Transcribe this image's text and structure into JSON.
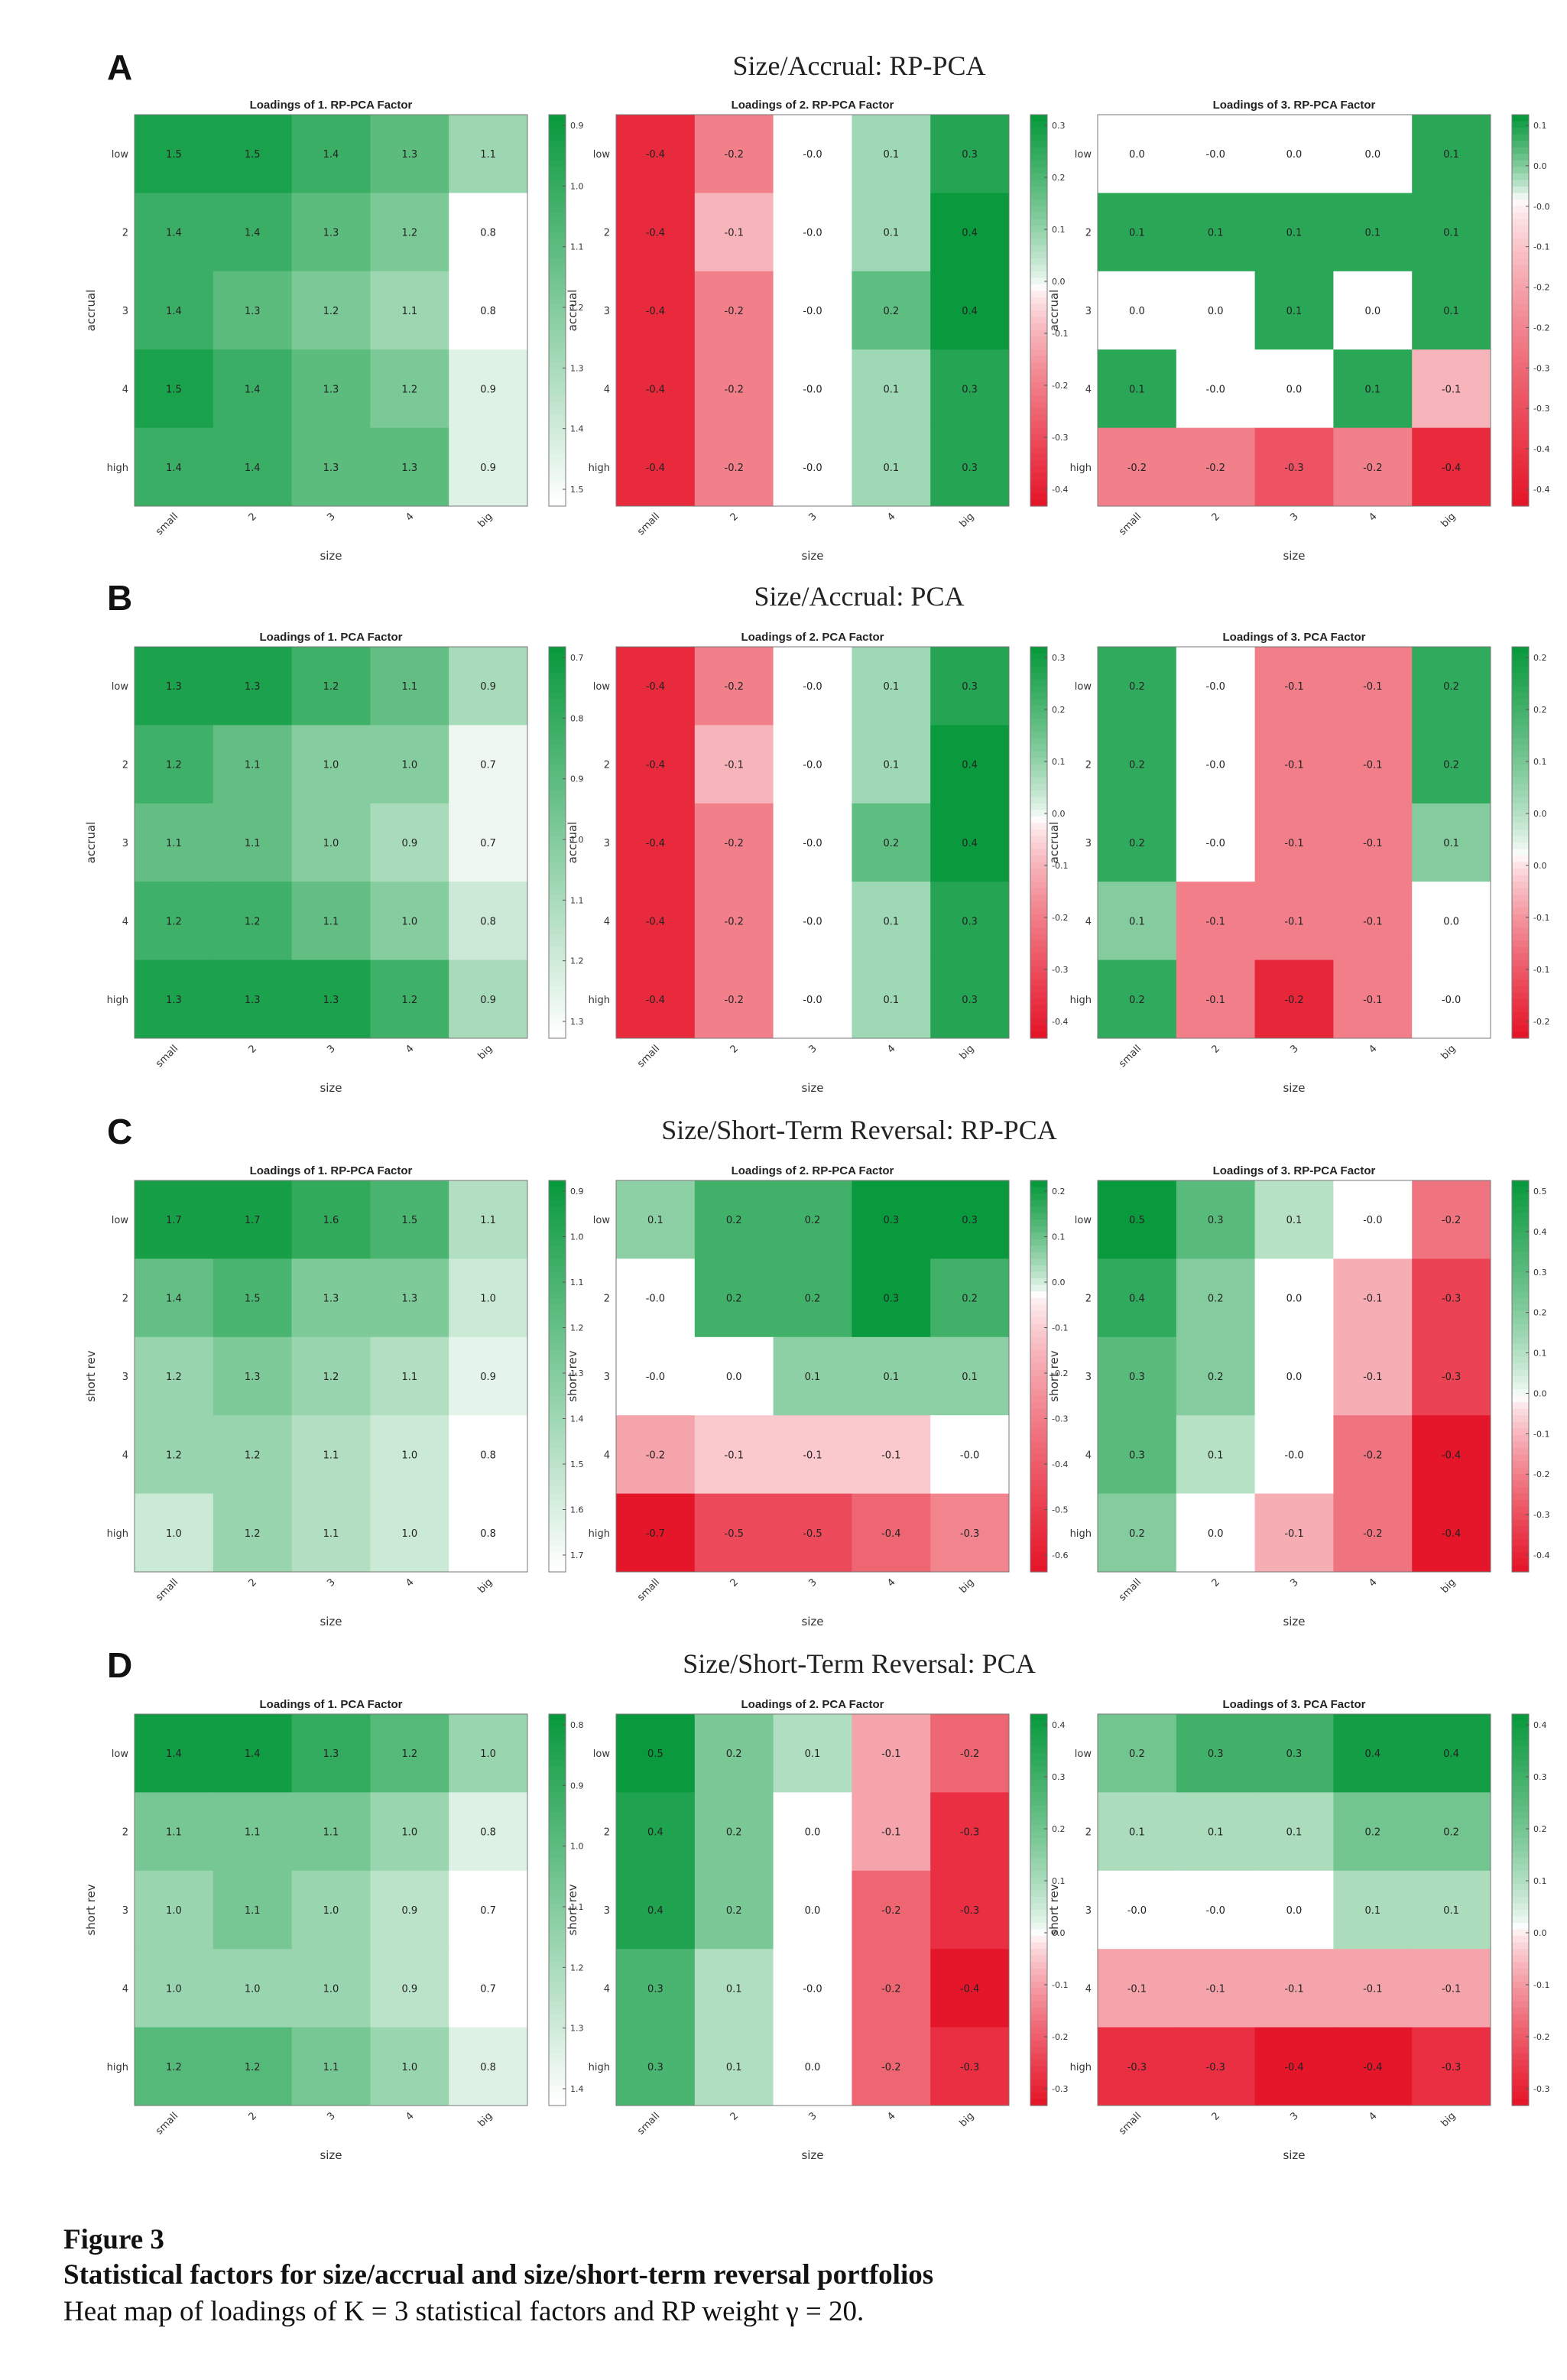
{
  "panels": [
    {
      "letter": "A",
      "title": "Size/Accrual: RP-PCA"
    },
    {
      "letter": "B",
      "title": "Size/Accrual: PCA"
    },
    {
      "letter": "C",
      "title": "Size/Short-Term Reversal: RP-PCA"
    },
    {
      "letter": "D",
      "title": "Size/Short-Term Reversal: PCA"
    }
  ],
  "caption": {
    "label": "Figure 3",
    "title": "Statistical factors for size/accrual and size/short-term reversal portfolios",
    "text": "Heat map of loadings of K = 3 statistical factors and RP weight γ = 20."
  },
  "colors": {
    "positive": "#0a9a3e",
    "negative": "#e6162a",
    "neutral": "#ffffff"
  },
  "chart_data": [
    {
      "type": "heatmap",
      "panel": "A",
      "title": "Loadings of 1. RP-PCA Factor",
      "xlabel": "size",
      "ylabel": "accrual",
      "x": [
        "small",
        "2",
        "3",
        "4",
        "big"
      ],
      "y": [
        "low",
        "2",
        "3",
        "4",
        "high"
      ],
      "values": [
        [
          1.5,
          1.5,
          1.4,
          1.3,
          1.1
        ],
        [
          1.4,
          1.4,
          1.3,
          1.2,
          0.8
        ],
        [
          1.4,
          1.3,
          1.2,
          1.1,
          0.8
        ],
        [
          1.5,
          1.4,
          1.3,
          1.2,
          0.9
        ],
        [
          1.4,
          1.4,
          1.3,
          1.3,
          0.9
        ]
      ],
      "colorbar": [
        "0.9",
        "1.0",
        "1.1",
        "1.2",
        "1.3",
        "1.4",
        "1.5"
      ],
      "clim": [
        0.8,
        1.55
      ],
      "diverging": false
    },
    {
      "type": "heatmap",
      "panel": "A",
      "title": "Loadings of 2. RP-PCA Factor",
      "xlabel": "size",
      "ylabel": "accrual",
      "x": [
        "small",
        "2",
        "3",
        "4",
        "big"
      ],
      "y": [
        "low",
        "2",
        "3",
        "4",
        "high"
      ],
      "values": [
        [
          -0.4,
          -0.2,
          -0.0,
          0.1,
          0.3
        ],
        [
          -0.4,
          -0.1,
          -0.0,
          0.1,
          0.4
        ],
        [
          -0.4,
          -0.2,
          -0.0,
          0.2,
          0.4
        ],
        [
          -0.4,
          -0.2,
          -0.0,
          0.1,
          0.3
        ],
        [
          -0.4,
          -0.2,
          -0.0,
          0.1,
          0.3
        ]
      ],
      "colorbar": [
        "0.3",
        "0.2",
        "0.1",
        "0.0",
        "-0.1",
        "-0.2",
        "-0.3",
        "-0.4"
      ],
      "clim": [
        -0.45,
        0.35
      ],
      "diverging": true
    },
    {
      "type": "heatmap",
      "panel": "A",
      "title": "Loadings of 3. RP-PCA Factor",
      "xlabel": "size",
      "ylabel": "accrual",
      "x": [
        "small",
        "2",
        "3",
        "4",
        "big"
      ],
      "y": [
        "low",
        "2",
        "3",
        "4",
        "high"
      ],
      "values": [
        [
          0.0,
          -0.0,
          0.0,
          0.0,
          0.1
        ],
        [
          0.1,
          0.1,
          0.1,
          0.1,
          0.1
        ],
        [
          0.0,
          0.0,
          0.1,
          0.0,
          0.1
        ],
        [
          0.1,
          -0.0,
          0.0,
          0.1,
          -0.1
        ],
        [
          -0.2,
          -0.2,
          -0.3,
          -0.2,
          -0.4
        ]
      ],
      "colorbar": [
        "0.1",
        "0.0",
        "-0.0",
        "-0.1",
        "-0.2",
        "-0.2",
        "-0.3",
        "-0.3",
        "-0.4",
        "-0.4"
      ],
      "clim": [
        -0.45,
        0.12
      ],
      "diverging": true
    },
    {
      "type": "heatmap",
      "panel": "B",
      "title": "Loadings of 1. PCA Factor",
      "xlabel": "size",
      "ylabel": "accrual",
      "x": [
        "small",
        "2",
        "3",
        "4",
        "big"
      ],
      "y": [
        "low",
        "2",
        "3",
        "4",
        "high"
      ],
      "values": [
        [
          1.3,
          1.3,
          1.2,
          1.1,
          0.9
        ],
        [
          1.2,
          1.1,
          1.0,
          1.0,
          0.7
        ],
        [
          1.1,
          1.1,
          1.0,
          0.9,
          0.7
        ],
        [
          1.2,
          1.2,
          1.1,
          1.0,
          0.8
        ],
        [
          1.3,
          1.3,
          1.3,
          1.2,
          0.9
        ]
      ],
      "colorbar": [
        "0.7",
        "0.8",
        "0.9",
        "1.0",
        "1.1",
        "1.2",
        "1.3"
      ],
      "clim": [
        0.65,
        1.35
      ],
      "diverging": false
    },
    {
      "type": "heatmap",
      "panel": "B",
      "title": "Loadings of 2. PCA Factor",
      "xlabel": "size",
      "ylabel": "accrual",
      "x": [
        "small",
        "2",
        "3",
        "4",
        "big"
      ],
      "y": [
        "low",
        "2",
        "3",
        "4",
        "high"
      ],
      "values": [
        [
          -0.4,
          -0.2,
          -0.0,
          0.1,
          0.3
        ],
        [
          -0.4,
          -0.1,
          -0.0,
          0.1,
          0.4
        ],
        [
          -0.4,
          -0.2,
          -0.0,
          0.2,
          0.4
        ],
        [
          -0.4,
          -0.2,
          -0.0,
          0.1,
          0.3
        ],
        [
          -0.4,
          -0.2,
          -0.0,
          0.1,
          0.3
        ]
      ],
      "colorbar": [
        "0.3",
        "0.2",
        "0.1",
        "0.0",
        "-0.1",
        "-0.2",
        "-0.3",
        "-0.4"
      ],
      "clim": [
        -0.45,
        0.35
      ],
      "diverging": true
    },
    {
      "type": "heatmap",
      "panel": "B",
      "title": "Loadings of 3. PCA Factor",
      "xlabel": "size",
      "ylabel": "accrual",
      "x": [
        "small",
        "2",
        "3",
        "4",
        "big"
      ],
      "y": [
        "low",
        "2",
        "3",
        "4",
        "high"
      ],
      "values": [
        [
          0.2,
          -0.0,
          -0.1,
          -0.1,
          0.2
        ],
        [
          0.2,
          -0.0,
          -0.1,
          -0.1,
          0.2
        ],
        [
          0.2,
          -0.0,
          -0.1,
          -0.1,
          0.1
        ],
        [
          0.1,
          -0.1,
          -0.1,
          -0.1,
          0.0
        ],
        [
          0.2,
          -0.1,
          -0.2,
          -0.1,
          -0.0
        ]
      ],
      "colorbar": [
        "0.2",
        "0.2",
        "0.1",
        "0.0",
        "0.0",
        "-0.1",
        "-0.1",
        "-0.2"
      ],
      "clim": [
        -0.22,
        0.25
      ],
      "diverging": true
    },
    {
      "type": "heatmap",
      "panel": "C",
      "title": "Loadings of 1. RP-PCA Factor",
      "xlabel": "size",
      "ylabel": "short rev",
      "x": [
        "small",
        "2",
        "3",
        "4",
        "big"
      ],
      "y": [
        "low",
        "2",
        "3",
        "4",
        "high"
      ],
      "values": [
        [
          1.7,
          1.7,
          1.6,
          1.5,
          1.1
        ],
        [
          1.4,
          1.5,
          1.3,
          1.3,
          1.0
        ],
        [
          1.2,
          1.3,
          1.2,
          1.1,
          0.9
        ],
        [
          1.2,
          1.2,
          1.1,
          1.0,
          0.8
        ],
        [
          1.0,
          1.2,
          1.1,
          1.0,
          0.8
        ]
      ],
      "colorbar": [
        "0.9",
        "1.0",
        "1.1",
        "1.2",
        "1.3",
        "1.4",
        "1.5",
        "1.6",
        "1.7"
      ],
      "clim": [
        0.8,
        1.75
      ],
      "diverging": false
    },
    {
      "type": "heatmap",
      "panel": "C",
      "title": "Loadings of 2. RP-PCA Factor",
      "xlabel": "size",
      "ylabel": "short rev",
      "x": [
        "small",
        "2",
        "3",
        "4",
        "big"
      ],
      "y": [
        "low",
        "2",
        "3",
        "4",
        "high"
      ],
      "values": [
        [
          0.1,
          0.2,
          0.2,
          0.3,
          0.3
        ],
        [
          -0.0,
          0.2,
          0.2,
          0.3,
          0.2
        ],
        [
          -0.0,
          0.0,
          0.1,
          0.1,
          0.1
        ],
        [
          -0.2,
          -0.1,
          -0.1,
          -0.1,
          -0.0
        ],
        [
          -0.7,
          -0.5,
          -0.5,
          -0.4,
          -0.3
        ]
      ],
      "colorbar": [
        "0.2",
        "0.1",
        "0.0",
        "-0.1",
        "-0.2",
        "-0.3",
        "-0.4",
        "-0.5",
        "-0.6"
      ],
      "clim": [
        -0.7,
        0.28
      ],
      "diverging": true
    },
    {
      "type": "heatmap",
      "panel": "C",
      "title": "Loadings of 3. RP-PCA Factor",
      "xlabel": "size",
      "ylabel": "short rev",
      "x": [
        "small",
        "2",
        "3",
        "4",
        "big"
      ],
      "y": [
        "low",
        "2",
        "3",
        "4",
        "high"
      ],
      "values": [
        [
          0.5,
          0.3,
          0.1,
          -0.0,
          -0.2
        ],
        [
          0.4,
          0.2,
          0.0,
          -0.1,
          -0.3
        ],
        [
          0.3,
          0.2,
          0.0,
          -0.1,
          -0.3
        ],
        [
          0.3,
          0.1,
          -0.0,
          -0.2,
          -0.4
        ],
        [
          0.2,
          0.0,
          -0.1,
          -0.2,
          -0.4
        ]
      ],
      "colorbar": [
        "0.5",
        "0.4",
        "0.3",
        "0.2",
        "0.1",
        "0.0",
        "-0.1",
        "-0.2",
        "-0.3",
        "-0.4"
      ],
      "clim": [
        -0.4,
        0.5
      ],
      "diverging": true
    },
    {
      "type": "heatmap",
      "panel": "D",
      "title": "Loadings of 1. PCA Factor",
      "xlabel": "size",
      "ylabel": "short rev",
      "x": [
        "small",
        "2",
        "3",
        "4",
        "big"
      ],
      "y": [
        "low",
        "2",
        "3",
        "4",
        "high"
      ],
      "values": [
        [
          1.4,
          1.4,
          1.3,
          1.2,
          1.0
        ],
        [
          1.1,
          1.1,
          1.1,
          1.0,
          0.8
        ],
        [
          1.0,
          1.1,
          1.0,
          0.9,
          0.7
        ],
        [
          1.0,
          1.0,
          1.0,
          0.9,
          0.7
        ],
        [
          1.2,
          1.2,
          1.1,
          1.0,
          0.8
        ]
      ],
      "colorbar": [
        "0.8",
        "0.9",
        "1.0",
        "1.1",
        "1.2",
        "1.3",
        "1.4"
      ],
      "clim": [
        0.7,
        1.42
      ],
      "diverging": false
    },
    {
      "type": "heatmap",
      "panel": "D",
      "title": "Loadings of 2. PCA Factor",
      "xlabel": "size",
      "ylabel": "short rev",
      "x": [
        "small",
        "2",
        "3",
        "4",
        "big"
      ],
      "y": [
        "low",
        "2",
        "3",
        "4",
        "high"
      ],
      "values": [
        [
          0.5,
          0.2,
          0.1,
          -0.1,
          -0.2
        ],
        [
          0.4,
          0.2,
          0.0,
          -0.1,
          -0.3
        ],
        [
          0.4,
          0.2,
          0.0,
          -0.2,
          -0.3
        ],
        [
          0.3,
          0.1,
          -0.0,
          -0.2,
          -0.4
        ],
        [
          0.3,
          0.1,
          0.0,
          -0.2,
          -0.3
        ]
      ],
      "colorbar": [
        "0.4",
        "0.3",
        "0.2",
        "0.1",
        "0.0",
        "-0.1",
        "-0.2",
        "-0.3"
      ],
      "clim": [
        -0.35,
        0.45
      ],
      "diverging": true
    },
    {
      "type": "heatmap",
      "panel": "D",
      "title": "Loadings of 3. PCA Factor",
      "xlabel": "size",
      "ylabel": "short rev",
      "x": [
        "small",
        "2",
        "3",
        "4",
        "big"
      ],
      "y": [
        "low",
        "2",
        "3",
        "4",
        "high"
      ],
      "values": [
        [
          0.2,
          0.3,
          0.3,
          0.4,
          0.4
        ],
        [
          0.1,
          0.1,
          0.1,
          0.2,
          0.2
        ],
        [
          -0.0,
          -0.0,
          0.0,
          0.1,
          0.1
        ],
        [
          -0.1,
          -0.1,
          -0.1,
          -0.1,
          -0.1
        ],
        [
          -0.3,
          -0.3,
          -0.4,
          -0.4,
          -0.3
        ]
      ],
      "colorbar": [
        "0.4",
        "0.3",
        "0.2",
        "0.1",
        "0.0",
        "-0.1",
        "-0.2",
        "-0.3"
      ],
      "clim": [
        -0.35,
        0.42
      ],
      "diverging": true
    }
  ]
}
